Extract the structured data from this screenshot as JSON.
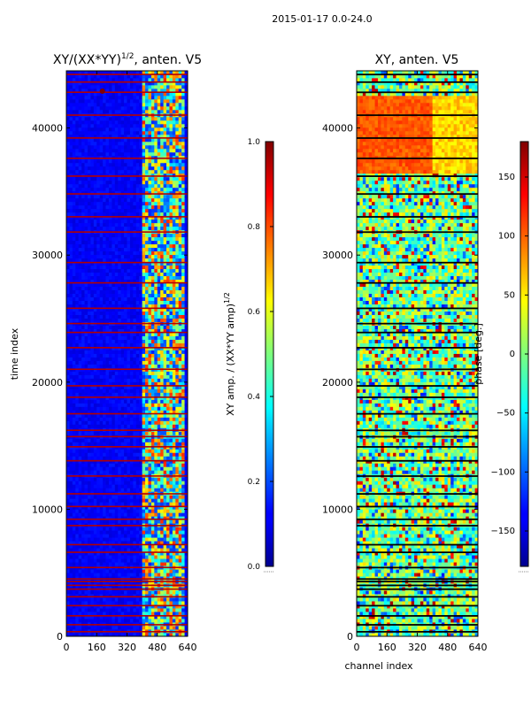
{
  "figure": {
    "suptitle": "2015-01-17 0.0-24.0"
  },
  "colors": {
    "jet_dark_blue": "#00008f",
    "jet_blue": "#0000ff",
    "jet_mid_blue": "#0050ff",
    "jet_cyan": "#00ffff",
    "jet_green_cyan": "#50ffaf",
    "jet_yellow": "#ffff00",
    "jet_orange": "#ff8000",
    "jet_red": "#ff0000",
    "jet_dark_red": "#800000",
    "gap_red": "#b40000",
    "gap_black": "#000000",
    "axis": "#000000"
  },
  "chart_data": [
    {
      "type": "heatmap",
      "id": "amplitude",
      "title": "XY/(XX*YY)",
      "title_exponent": "1/2",
      "title_suffix": ", anten. V5",
      "xlabel": "",
      "ylabel": "time index",
      "xlim": [
        0,
        640
      ],
      "ylim": [
        0,
        44500
      ],
      "x_ticks": [
        0,
        160,
        320,
        480,
        640
      ],
      "x_tick_labels": [
        "0",
        "160",
        "320",
        "480",
        "640"
      ],
      "y_ticks": [
        0,
        10000,
        20000,
        30000,
        40000
      ],
      "y_tick_labels": [
        "0",
        "10000",
        "20000",
        "30000",
        "40000"
      ],
      "colorbar": {
        "label": "XY amp. / (XX*YY amp)",
        "label_exponent": "1/2",
        "vmin": 0.0,
        "vmax": 1.0,
        "ticks": [
          0.0,
          0.2,
          0.4,
          0.6,
          0.8,
          1.0
        ],
        "tick_labels": [
          "0.0",
          "0.2",
          "0.4",
          "0.6",
          "0.8",
          "1.0"
        ]
      },
      "structure": {
        "background_value": 0.12,
        "active_channel_band": [
          400,
          620
        ],
        "active_band_value_range": [
          0.25,
          0.85
        ],
        "flagged_rows_value": 1.0,
        "flagged_rows": [
          350,
          900,
          1600,
          2400,
          3100,
          3700,
          4000,
          4300,
          4500,
          5400,
          6600,
          7200,
          8700,
          9200,
          10200,
          11200,
          12600,
          13800,
          14900,
          15700,
          16200,
          17500,
          18800,
          19700,
          21000,
          22700,
          23900,
          24600,
          25800,
          27800,
          29400,
          31800,
          33000,
          34800,
          36200,
          37600,
          39200,
          41000,
          42800,
          43600,
          44200
        ],
        "bright_feature": {
          "channel": 190,
          "time": 42900,
          "value": 1.0
        }
      }
    },
    {
      "type": "heatmap",
      "id": "phase",
      "title": "XY, anten. V5",
      "xlabel": "channel index",
      "ylabel": "",
      "xlim": [
        0,
        640
      ],
      "ylim": [
        0,
        44500
      ],
      "x_ticks": [
        0,
        160,
        320,
        480,
        640
      ],
      "x_tick_labels": [
        "0",
        "160",
        "320",
        "480",
        "640"
      ],
      "y_ticks": [
        0,
        10000,
        20000,
        30000,
        40000
      ],
      "y_tick_labels": [
        "0",
        "10000",
        "20000",
        "30000",
        "40000"
      ],
      "colorbar": {
        "label": "phase [deg.]",
        "vmin": -180,
        "vmax": 180,
        "ticks": [
          -150,
          -100,
          -50,
          0,
          50,
          100,
          150
        ],
        "tick_labels": [
          "−150",
          "−100",
          "−50",
          "0",
          "50",
          "100",
          "150"
        ]
      },
      "structure": {
        "upper_block": {
          "time_range": [
            36500,
            42500
          ],
          "value_deg": 105
        },
        "upper_block_right_region": {
          "channel_range": [
            400,
            640
          ],
          "value_deg": 60
        },
        "lower_region_value_range_deg": [
          -60,
          60
        ],
        "gap_rows_value": "black",
        "gap_rows": [
          350,
          900,
          1600,
          2400,
          3100,
          3700,
          4000,
          4300,
          4500,
          5400,
          6600,
          7200,
          8700,
          9200,
          10200,
          11200,
          12600,
          13800,
          14900,
          15700,
          16200,
          17500,
          18800,
          19700,
          21000,
          22700,
          23900,
          24600,
          25800,
          27800,
          29400,
          31800,
          33000,
          34800,
          36200,
          37600,
          39200,
          41000,
          42800,
          43600,
          44200
        ]
      }
    }
  ]
}
